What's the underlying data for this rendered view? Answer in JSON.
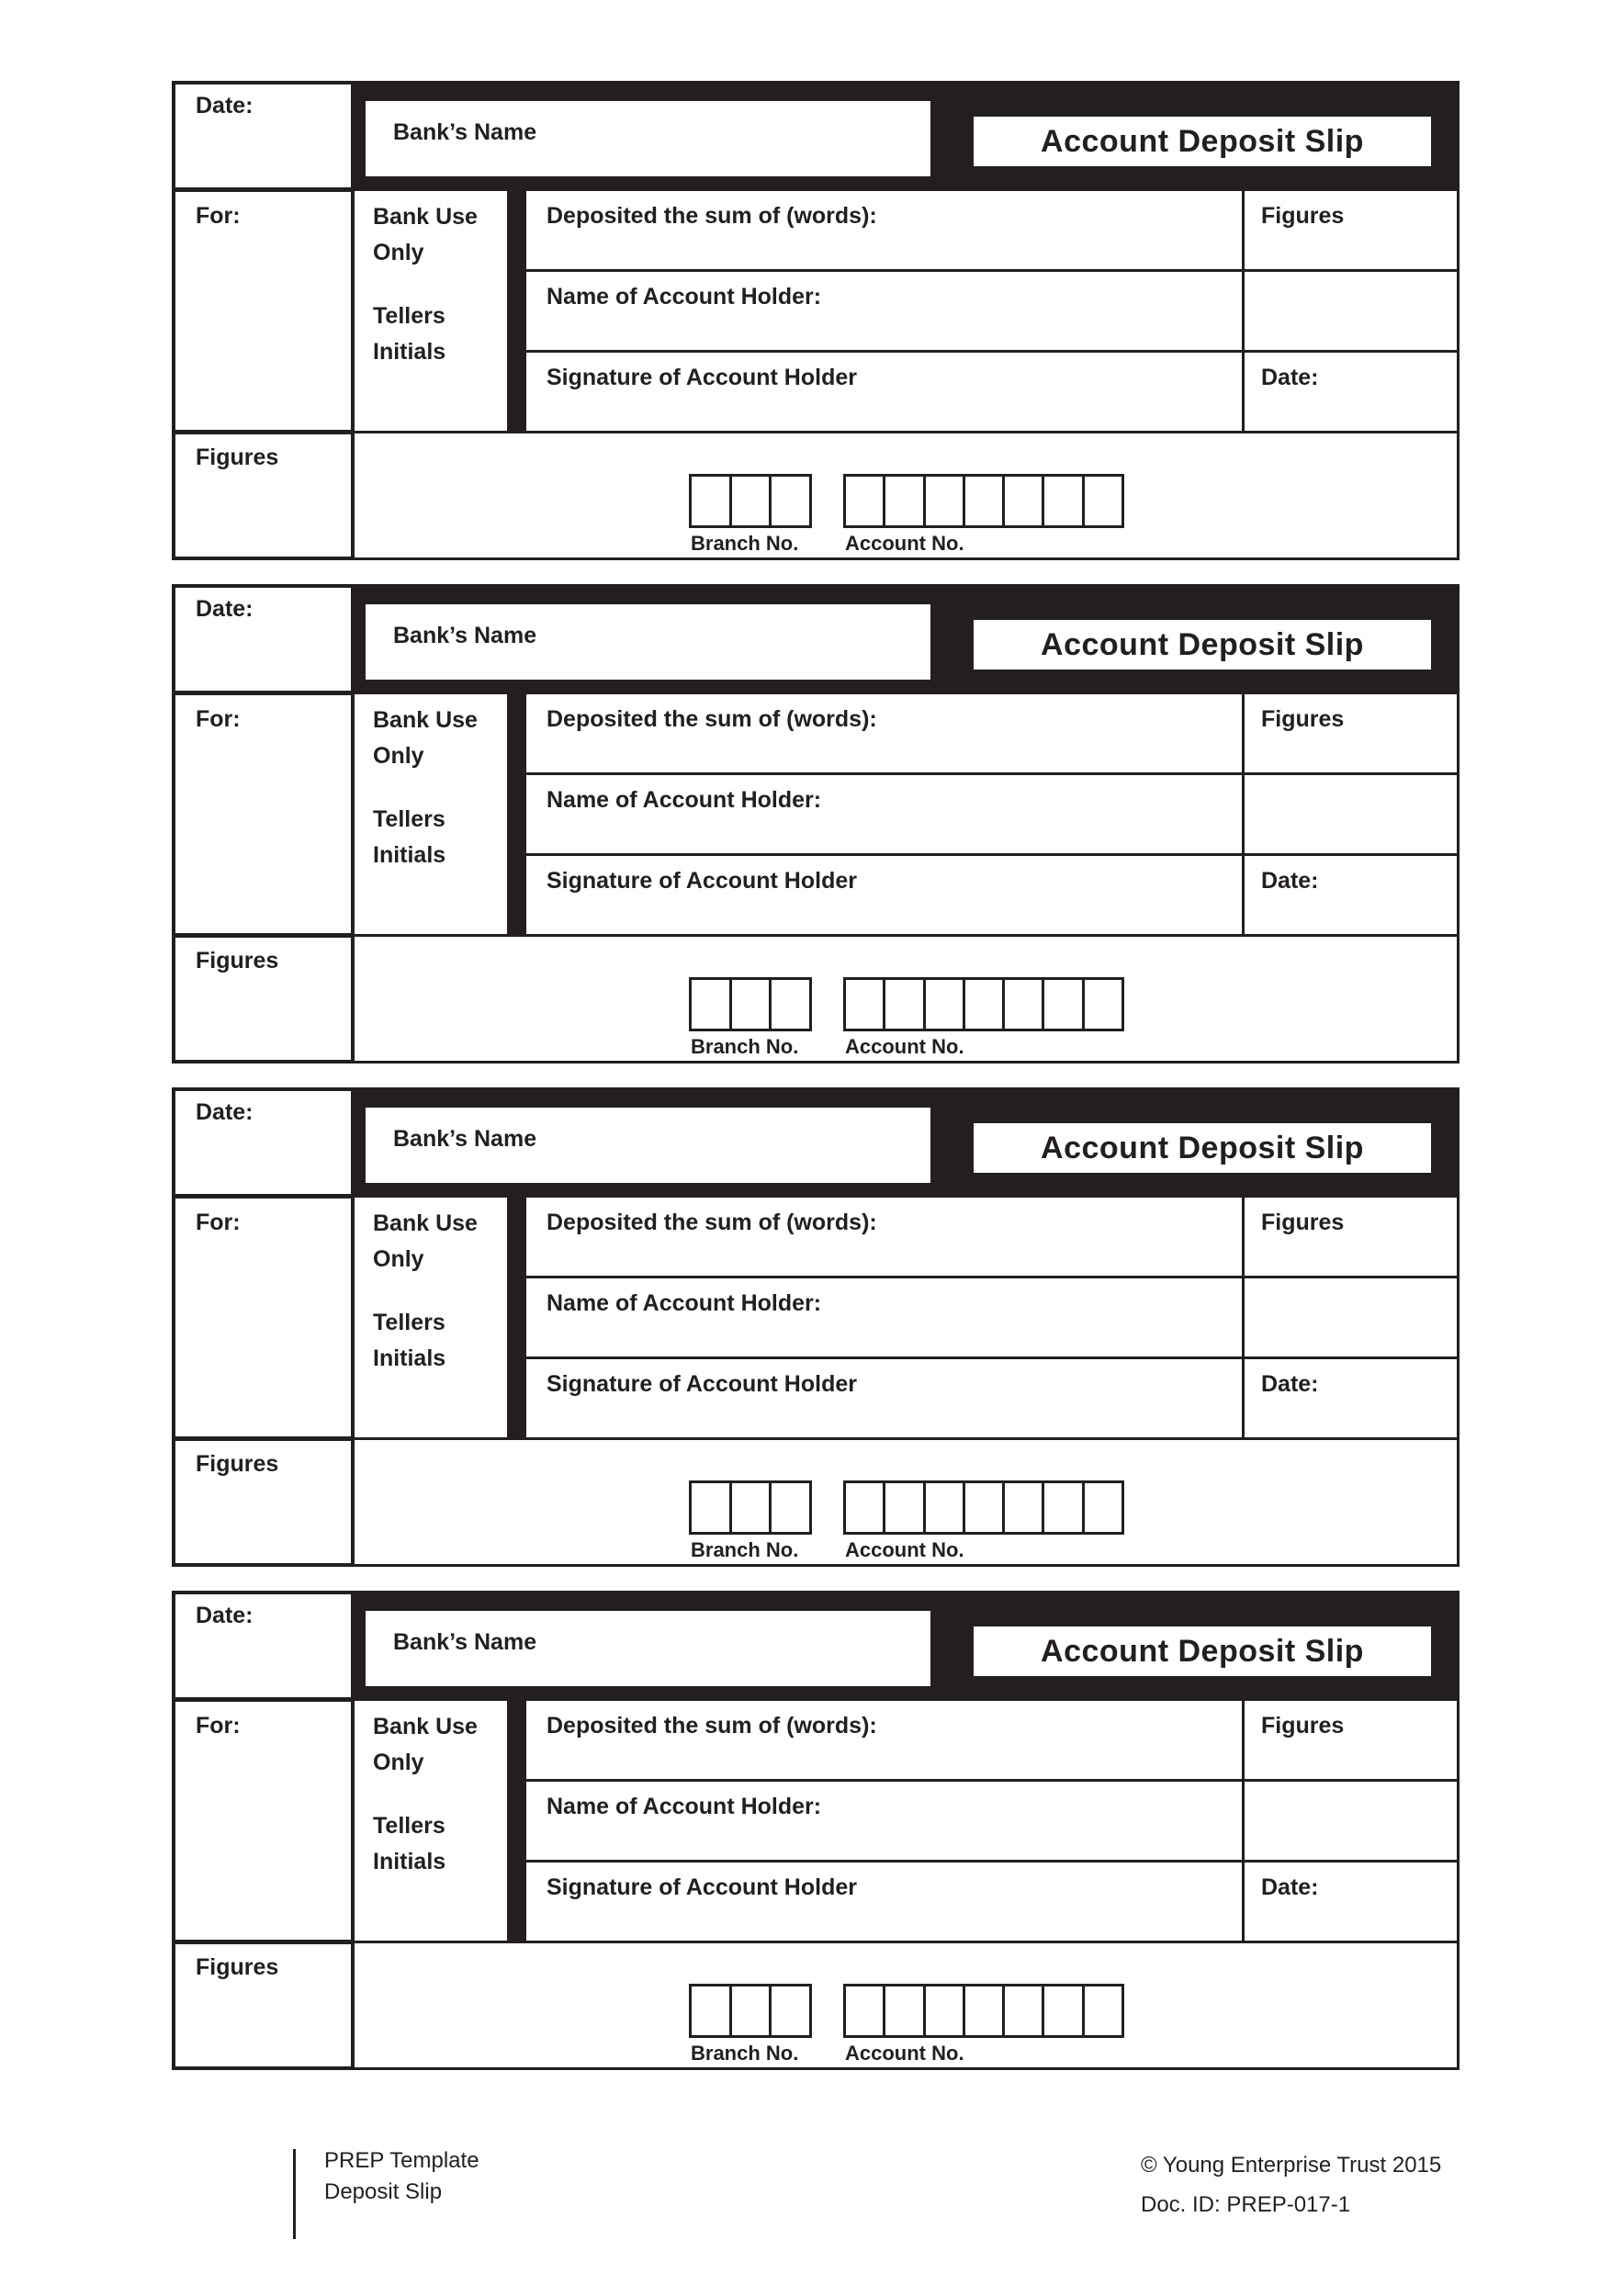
{
  "page": {
    "background": "#ffffff",
    "ink": "#231f20"
  },
  "slip_count": 4,
  "slip": {
    "date_label": "Date:",
    "bank_name_label": "Bank’s Name",
    "title": "Account Deposit Slip",
    "for_label": "For:",
    "bank_use_line1": "Bank Use",
    "bank_use_line2": "Only",
    "tellers_line1": "Tellers",
    "tellers_line2": "Initials",
    "deposited_label": "Deposited the sum of (words):",
    "figures_label": "Figures",
    "name_label": "Name of Account Holder:",
    "signature_label": "Signature of Account Holder",
    "signature_date_label": "Date:",
    "figures_bottom_label": "Figures",
    "branch_label": "Branch No.",
    "account_label": "Account No.",
    "branch_cells": 3,
    "account_cells": 7
  },
  "footer": {
    "template_line1": "PREP Template",
    "template_line2": "Deposit Slip",
    "copyright": "© Young Enterprise Trust 2015",
    "doc_id": "Doc. ID: PREP-017-1"
  }
}
